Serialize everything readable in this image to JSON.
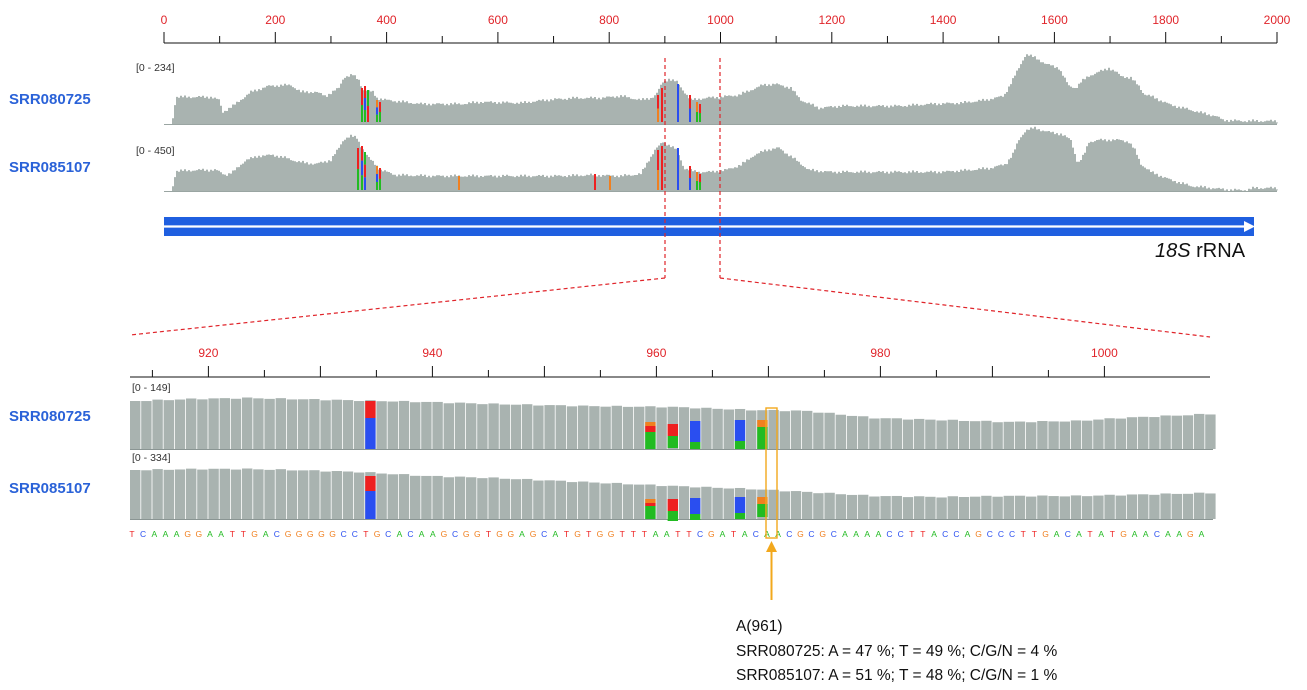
{
  "overview": {
    "ruler_ticks": [
      "0",
      "200",
      "400",
      "600",
      "800",
      "1000",
      "1200",
      "1400",
      "1600",
      "1800",
      "2000"
    ],
    "tracks": [
      {
        "name": "SRR080725",
        "range": "[0 - 234]"
      },
      {
        "name": "SRR085107",
        "range": "[0 - 450]"
      }
    ]
  },
  "gene": {
    "name_italic": "18S",
    "name_rest": " rRNA"
  },
  "zoom": {
    "ruler_ticks": [
      "920",
      "940",
      "960",
      "980",
      "1000"
    ],
    "tracks": [
      {
        "name": "SRR080725",
        "range": "[0 - 149]"
      },
      {
        "name": "SRR085107",
        "range": "[0 - 334]"
      }
    ],
    "sequence": "TCAAAGGAATTGACGGGGGCCTGCACAAGCGGTGGAGCATGTGGTTTAATTCGATACAACGCGCAAAACCTTACCAGCCCTTGACATATGAACAAGA"
  },
  "annotation": {
    "position": "A(961)",
    "line1": "SRR080725: A = 47 %; T = 49 %; C/G/N = 4 %",
    "line2": "SRR085107: A = 51 %; T = 48 %; C/G/N = 1 %"
  },
  "colors": {
    "coverage": "#a9b3b0",
    "ruler_label": "#e0242a",
    "track_label": "#2a62d8",
    "gene_bar": "#1f5fe0",
    "highlight": "#f2a81d",
    "base_A": "#22bb22",
    "base_C": "#2a4ef0",
    "base_G": "#f08020",
    "base_T": "#ee2020"
  }
}
